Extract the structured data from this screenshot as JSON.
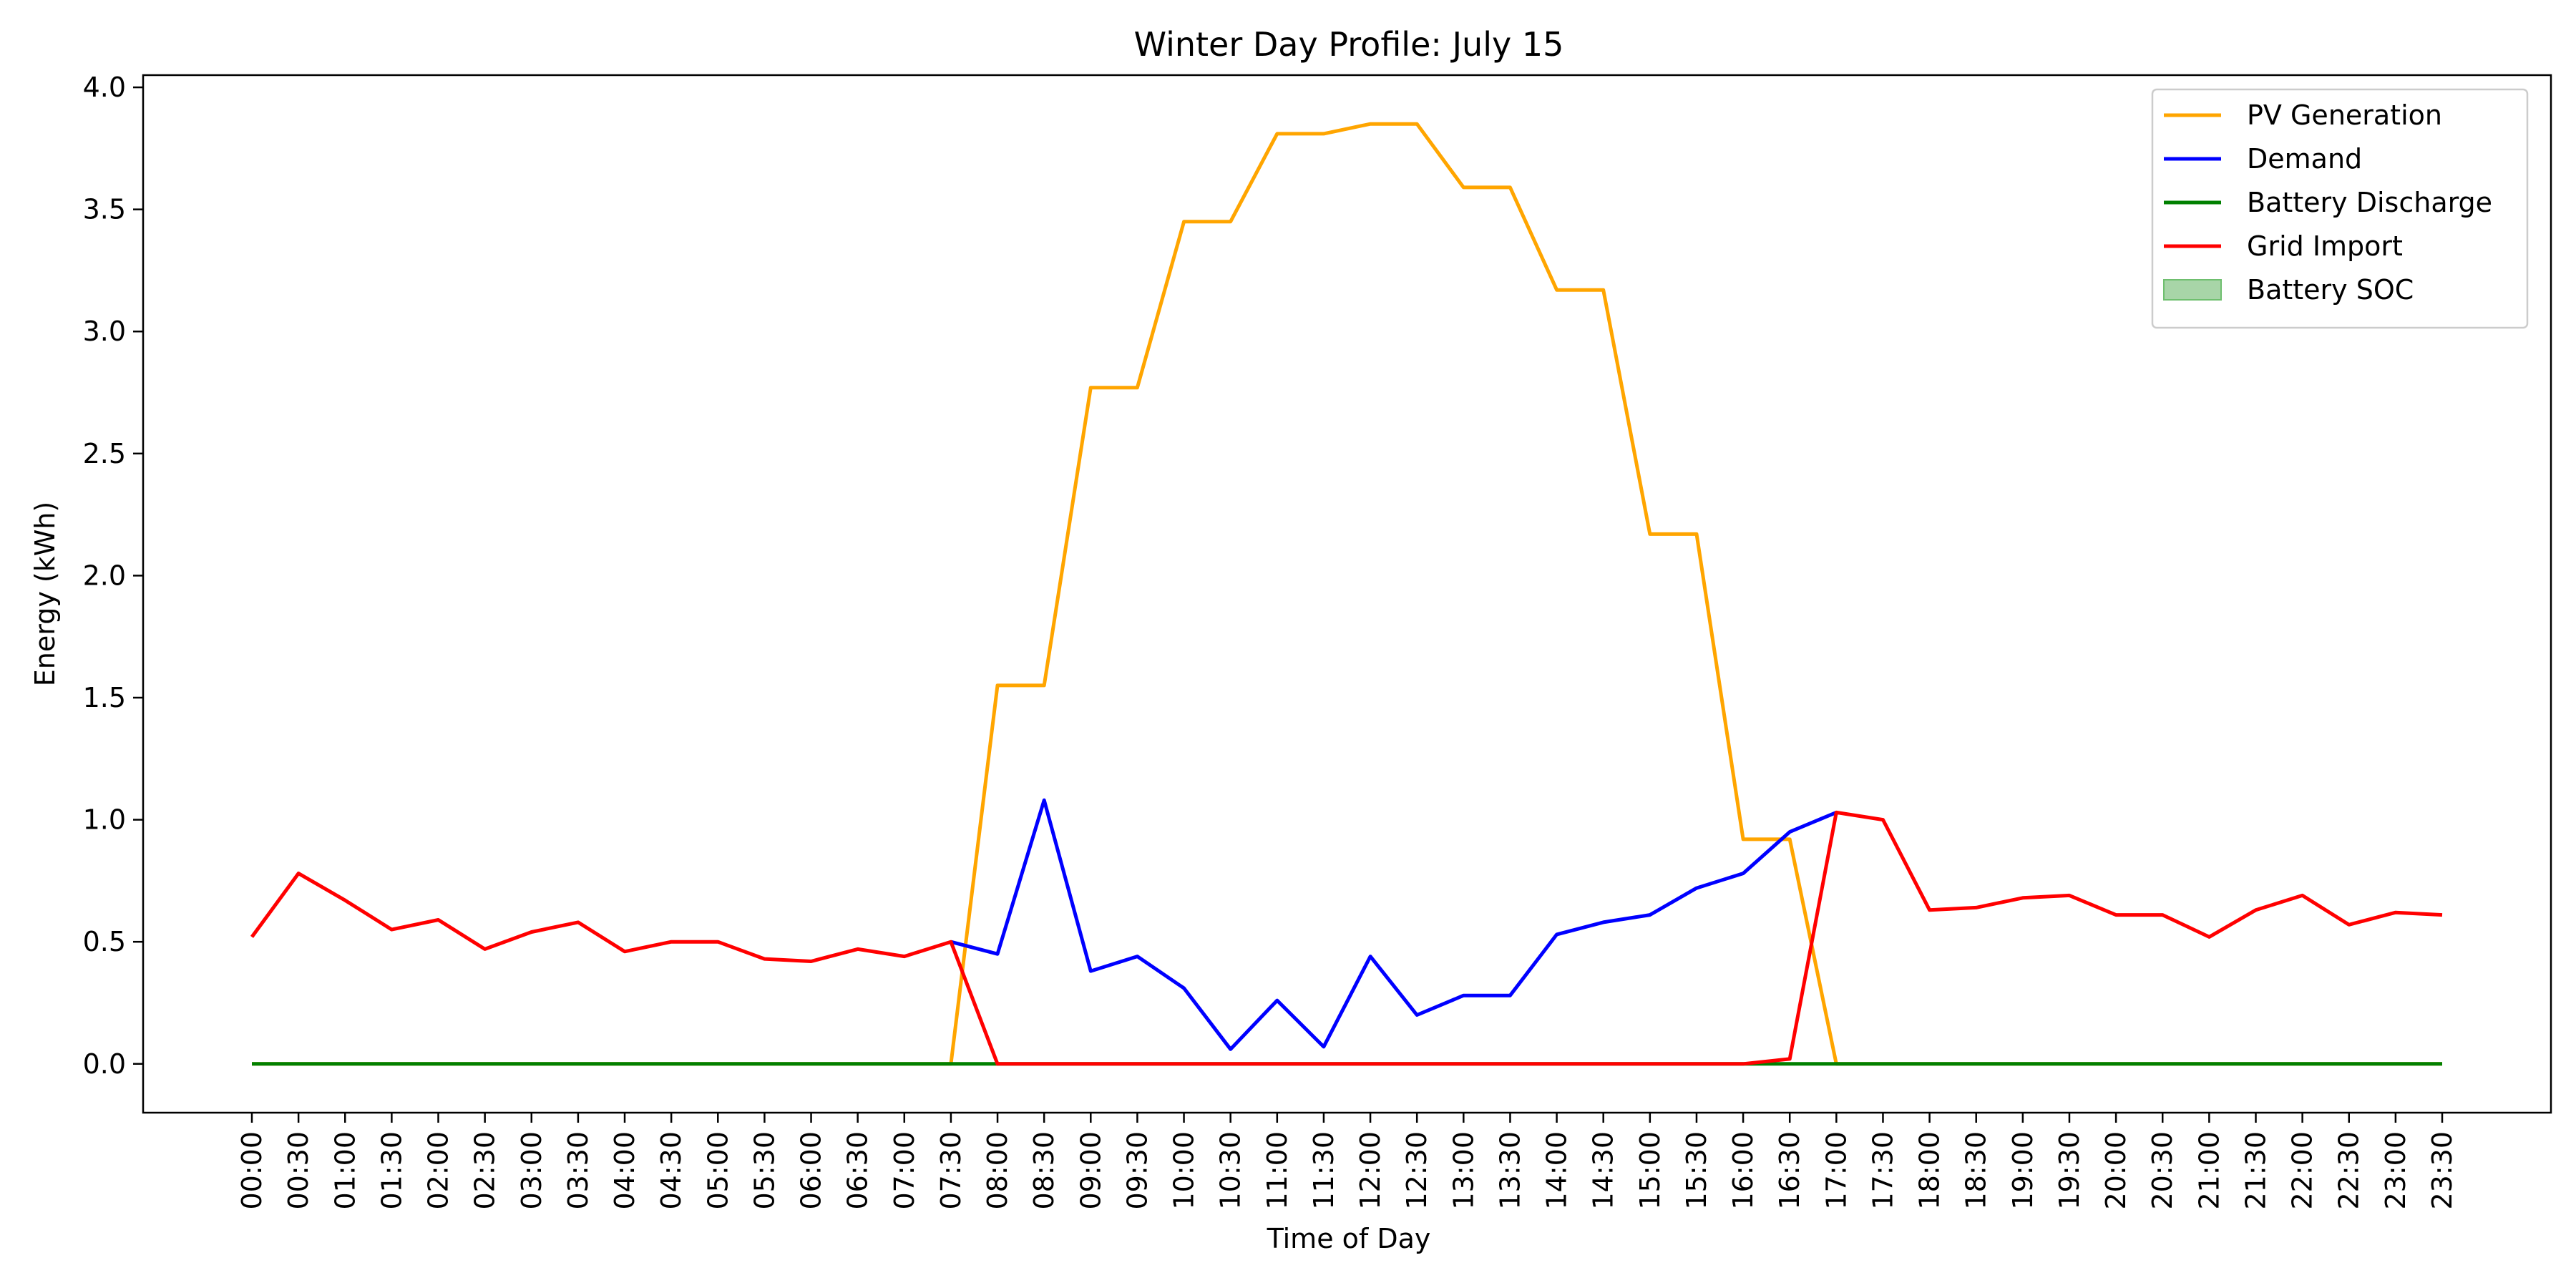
{
  "chart_data": {
    "type": "line",
    "title": "Winter Day Profile: July 15",
    "xlabel": "Time of Day",
    "ylabel": "Energy (kWh)",
    "ylim": [
      -0.2,
      4.05
    ],
    "yticks": [
      "0.0",
      "0.5",
      "1.0",
      "1.5",
      "2.0",
      "2.5",
      "3.0",
      "3.5",
      "4.0"
    ],
    "ytick_values": [
      0,
      0.5,
      1.0,
      1.5,
      2.0,
      2.5,
      3.0,
      3.5,
      4.0
    ],
    "grid": false,
    "legend_position": "top-right",
    "categories": [
      "00:00",
      "00:30",
      "01:00",
      "01:30",
      "02:00",
      "02:30",
      "03:00",
      "03:30",
      "04:00",
      "04:30",
      "05:00",
      "05:30",
      "06:00",
      "06:30",
      "07:00",
      "07:30",
      "08:00",
      "08:30",
      "09:00",
      "09:30",
      "10:00",
      "10:30",
      "11:00",
      "11:30",
      "12:00",
      "12:30",
      "13:00",
      "13:30",
      "14:00",
      "14:30",
      "15:00",
      "15:30",
      "16:00",
      "16:30",
      "17:00",
      "17:30",
      "18:00",
      "18:30",
      "19:00",
      "19:30",
      "20:00",
      "20:30",
      "21:00",
      "21:30",
      "22:00",
      "22:30",
      "23:00",
      "23:30"
    ],
    "series": [
      {
        "name": "PV Generation",
        "color": "#ffa500",
        "values": [
          0,
          0,
          0,
          0,
          0,
          0,
          0,
          0,
          0,
          0,
          0,
          0,
          0,
          0,
          0,
          0,
          1.55,
          1.55,
          2.77,
          2.77,
          3.45,
          3.45,
          3.81,
          3.81,
          3.85,
          3.85,
          3.59,
          3.59,
          3.17,
          3.17,
          2.17,
          2.17,
          0.92,
          0.92,
          0,
          0,
          0,
          0,
          0,
          0,
          0,
          0,
          0,
          0,
          0,
          0,
          0,
          0
        ]
      },
      {
        "name": "Demand",
        "color": "#0000ff",
        "values": [
          null,
          null,
          null,
          null,
          null,
          null,
          null,
          null,
          null,
          null,
          null,
          null,
          null,
          null,
          null,
          0.5,
          0.45,
          1.08,
          0.38,
          0.44,
          0.31,
          0.06,
          0.26,
          0.07,
          0.44,
          0.2,
          0.28,
          0.28,
          0.53,
          0.58,
          0.61,
          0.72,
          0.78,
          0.95,
          1.03,
          null,
          null,
          null,
          null,
          null,
          null,
          null,
          null,
          null,
          null,
          null,
          null,
          null
        ]
      },
      {
        "name": "Battery Discharge",
        "color": "#008000",
        "values": [
          0,
          0,
          0,
          0,
          0,
          0,
          0,
          0,
          0,
          0,
          0,
          0,
          0,
          0,
          0,
          0,
          0,
          0,
          0,
          0,
          0,
          0,
          0,
          0,
          0,
          0,
          0,
          0,
          0,
          0,
          0,
          0,
          0,
          0,
          0,
          0,
          0,
          0,
          0,
          0,
          0,
          0,
          0,
          0,
          0,
          0,
          0,
          0
        ]
      },
      {
        "name": "Grid Import",
        "color": "#ff0000",
        "values": [
          0.52,
          0.78,
          0.67,
          0.55,
          0.59,
          0.47,
          0.54,
          0.58,
          0.46,
          0.5,
          0.5,
          0.43,
          0.42,
          0.47,
          0.44,
          0.5,
          0,
          0,
          0,
          0,
          0,
          0,
          0,
          0,
          0,
          0,
          0,
          0,
          0,
          0,
          0,
          0,
          0,
          0.02,
          1.03,
          1.0,
          0.63,
          0.64,
          0.68,
          0.69,
          0.61,
          0.61,
          0.52,
          0.63,
          0.69,
          0.57,
          0.62,
          0.61
        ]
      }
    ],
    "legend": [
      {
        "label": "PV Generation",
        "color": "#ffa500",
        "kind": "line"
      },
      {
        "label": "Demand",
        "color": "#0000ff",
        "kind": "line"
      },
      {
        "label": "Battery Discharge",
        "color": "#008000",
        "kind": "line"
      },
      {
        "label": "Grid Import",
        "color": "#ff0000",
        "kind": "line"
      },
      {
        "label": "Battery SOC",
        "color": "#a8d5a8",
        "kind": "patch"
      }
    ]
  }
}
